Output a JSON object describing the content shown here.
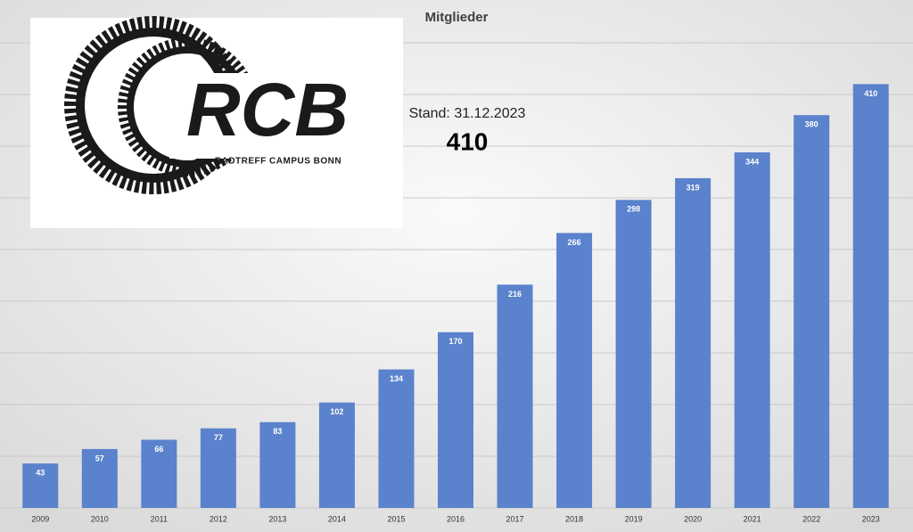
{
  "chart_data": {
    "type": "bar",
    "title": "Mitglieder",
    "categories": [
      "2009",
      "2010",
      "2011",
      "2012",
      "2013",
      "2014",
      "2015",
      "2016",
      "2017",
      "2018",
      "2019",
      "2020",
      "2021",
      "2022",
      "2023"
    ],
    "values": [
      43,
      57,
      66,
      77,
      83,
      102,
      134,
      170,
      216,
      266,
      298,
      319,
      344,
      380,
      410
    ],
    "color": "#5b82cc",
    "ylim": [
      0,
      450
    ],
    "yticks": [
      0,
      50,
      100,
      150,
      200,
      250,
      300,
      350,
      400,
      450
    ],
    "grid": true,
    "annotation": "Stand: 31.12.2023",
    "total": 410,
    "logo": {
      "title": "RCB",
      "subtitle": "RADTREFF CAMPUS BONN"
    }
  }
}
